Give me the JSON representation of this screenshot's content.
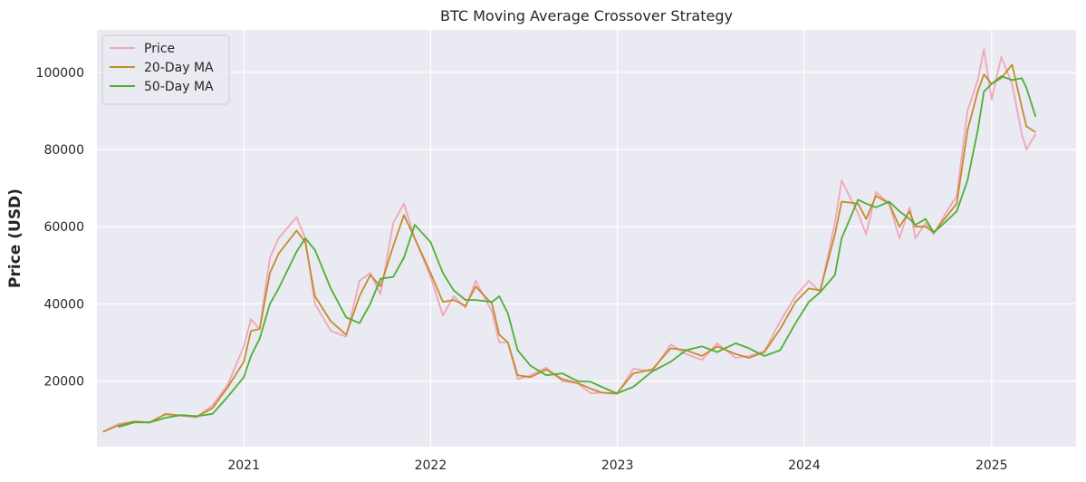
{
  "chart_data": {
    "type": "line",
    "title": "BTC Moving Average Crossover Strategy",
    "xlabel": "",
    "ylabel": "Price (USD)",
    "xlim": [
      "2020-03-20",
      "2025-06-15"
    ],
    "ylim": [
      3000,
      111000
    ],
    "x_ticks": [
      "2021",
      "2022",
      "2023",
      "2024",
      "2025"
    ],
    "y_ticks": [
      20000,
      40000,
      60000,
      80000,
      100000
    ],
    "grid": true,
    "legend_position": "top-left",
    "x": [
      "2020-04-01",
      "2020-05-01",
      "2020-06-01",
      "2020-07-01",
      "2020-08-01",
      "2020-09-01",
      "2020-10-01",
      "2020-11-01",
      "2020-12-01",
      "2021-01-01",
      "2021-01-15",
      "2021-02-01",
      "2021-02-21",
      "2021-03-10",
      "2021-04-14",
      "2021-05-01",
      "2021-05-20",
      "2021-06-20",
      "2021-07-20",
      "2021-08-15",
      "2021-09-05",
      "2021-09-25",
      "2021-10-20",
      "2021-11-10",
      "2021-12-01",
      "2022-01-01",
      "2022-01-25",
      "2022-02-15",
      "2022-03-10",
      "2022-03-30",
      "2022-05-01",
      "2022-05-15",
      "2022-06-01",
      "2022-06-20",
      "2022-07-15",
      "2022-08-15",
      "2022-09-15",
      "2022-10-15",
      "2022-11-10",
      "2022-12-01",
      "2022-12-31",
      "2023-02-01",
      "2023-03-10",
      "2023-04-15",
      "2023-05-15",
      "2023-06-15",
      "2023-07-15",
      "2023-08-20",
      "2023-09-15",
      "2023-10-15",
      "2023-11-15",
      "2023-12-15",
      "2024-01-10",
      "2024-02-01",
      "2024-03-01",
      "2024-03-14",
      "2024-04-15",
      "2024-05-01",
      "2024-05-20",
      "2024-06-15",
      "2024-07-05",
      "2024-07-25",
      "2024-08-05",
      "2024-08-25",
      "2024-09-10",
      "2024-10-01",
      "2024-10-25",
      "2024-11-15",
      "2024-12-05",
      "2024-12-17",
      "2025-01-01",
      "2025-01-20",
      "2025-02-10",
      "2025-03-01",
      "2025-03-10",
      "2025-03-28"
    ],
    "series": [
      {
        "name": "Price",
        "color": "#f2a5b8",
        "values": [
          6800,
          8900,
          9500,
          9200,
          11500,
          11000,
          10600,
          13700,
          19200,
          29000,
          36000,
          33500,
          52000,
          57000,
          62500,
          57000,
          40000,
          33000,
          31500,
          46000,
          48000,
          42500,
          61000,
          66000,
          57000,
          47000,
          37000,
          42000,
          39000,
          46000,
          38000,
          30000,
          30000,
          20500,
          21500,
          23500,
          20000,
          19400,
          16800,
          17000,
          16600,
          23200,
          22500,
          29500,
          27000,
          25500,
          29800,
          26000,
          26500,
          27700,
          35500,
          42000,
          46000,
          43000,
          61000,
          72000,
          63500,
          58000,
          69000,
          66000,
          57000,
          65000,
          57000,
          61000,
          58000,
          63000,
          68000,
          90000,
          98000,
          106000,
          93000,
          104000,
          97000,
          84000,
          80000,
          84000
        ]
      },
      {
        "name": "20-Day MA",
        "color": "#c38c2c",
        "values": [
          6900,
          8500,
          9500,
          9300,
          11400,
          11100,
          10800,
          13000,
          18500,
          25000,
          33000,
          33500,
          48000,
          53000,
          59000,
          56000,
          42000,
          35500,
          32000,
          42000,
          47500,
          44500,
          55000,
          63000,
          57000,
          48000,
          40500,
          41000,
          39500,
          44500,
          40000,
          32000,
          30000,
          21500,
          21000,
          23000,
          20500,
          19500,
          18000,
          17000,
          16800,
          22000,
          23000,
          28500,
          28000,
          26500,
          29000,
          27000,
          26000,
          27500,
          33500,
          40500,
          44000,
          43500,
          58000,
          66500,
          66000,
          62000,
          68000,
          66000,
          60000,
          64000,
          60000,
          60000,
          58500,
          62000,
          66000,
          85000,
          95000,
          99500,
          97000,
          98500,
          102000,
          91000,
          86000,
          84500
        ]
      },
      {
        "name": "50-Day MA",
        "color": "#4daf35",
        "values": [
          null,
          8100,
          9300,
          9300,
          10500,
          11200,
          10900,
          11500,
          16000,
          21000,
          26500,
          31000,
          40000,
          44000,
          53500,
          57000,
          54000,
          44000,
          36500,
          35000,
          40000,
          46500,
          47000,
          52000,
          60500,
          56000,
          48000,
          43500,
          41000,
          41000,
          40500,
          42000,
          37500,
          28000,
          24000,
          21500,
          22000,
          20000,
          19800,
          18500,
          16800,
          18500,
          22500,
          25000,
          28000,
          29000,
          27500,
          29800,
          28500,
          26500,
          28000,
          35000,
          40500,
          43000,
          47500,
          57000,
          67000,
          66000,
          65000,
          66500,
          64000,
          62000,
          60500,
          62000,
          58500,
          61000,
          64000,
          72000,
          85000,
          95000,
          97000,
          99000,
          98000,
          98500,
          96000,
          88500
        ]
      }
    ]
  }
}
